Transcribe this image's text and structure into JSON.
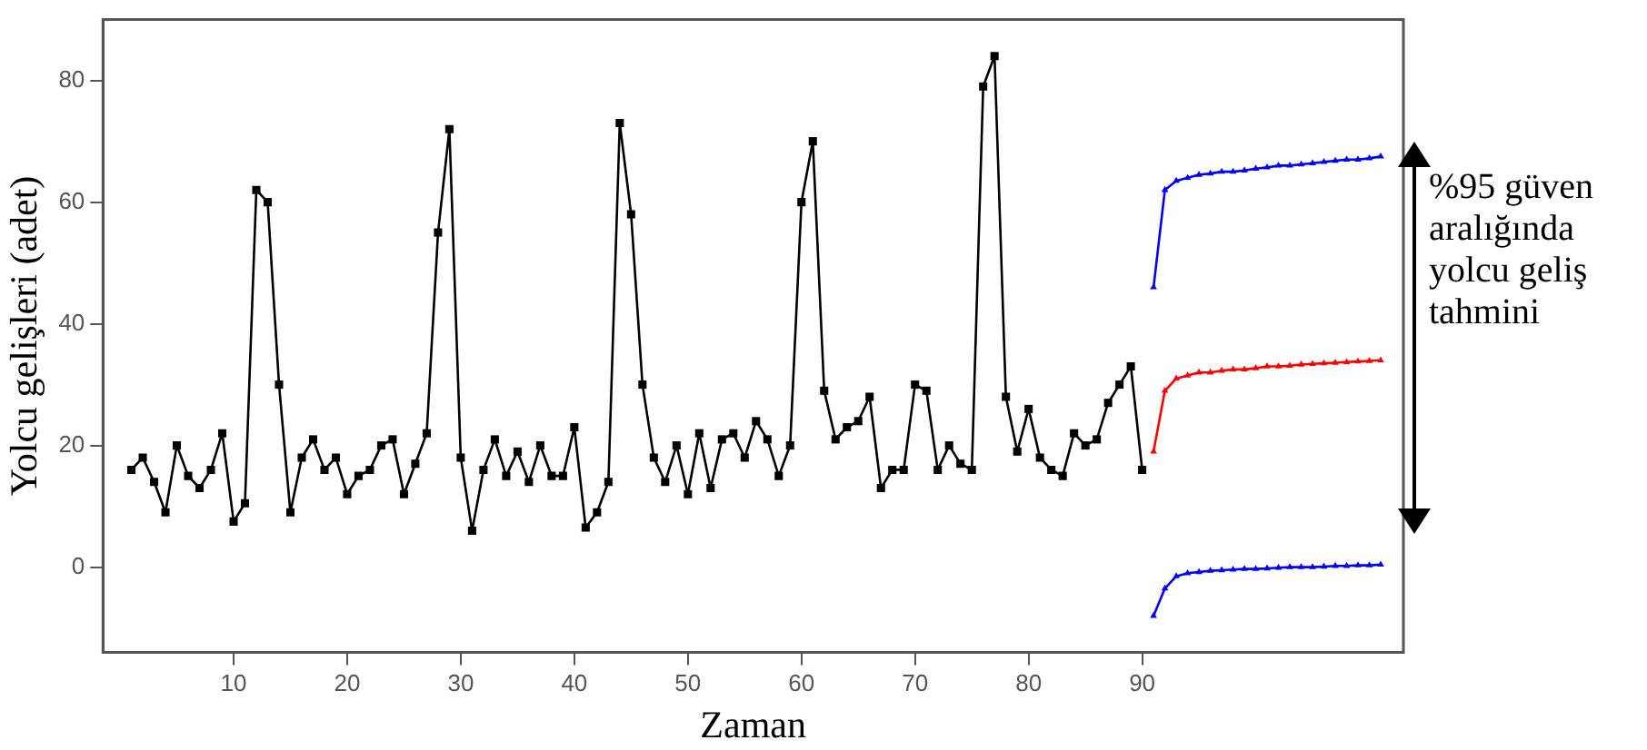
{
  "chart_data": {
    "type": "line",
    "xlabel": "Zaman",
    "ylabel": "Yolcu gelişleri (adet)",
    "xlim": [
      -1.5,
      113
    ],
    "ylim": [
      -14,
      90
    ],
    "xticks": [
      10,
      20,
      30,
      40,
      50,
      60,
      70,
      80,
      90
    ],
    "yticks": [
      0,
      20,
      40,
      60,
      80
    ],
    "grid": false,
    "legend": false,
    "annotations": [
      "%95 güven aralığında yolcu geliş tahmini"
    ],
    "series": [
      {
        "color": "#000000",
        "marker": "square",
        "x": [
          1,
          2,
          3,
          4,
          5,
          6,
          7,
          8,
          9,
          10,
          11,
          12,
          13,
          14,
          15,
          16,
          17,
          18,
          19,
          20,
          21,
          22,
          23,
          24,
          25,
          26,
          27,
          28,
          29,
          30,
          31,
          32,
          33,
          34,
          35,
          36,
          37,
          38,
          39,
          40,
          41,
          42,
          43,
          44,
          45,
          46,
          47,
          48,
          49,
          50,
          51,
          52,
          53,
          54,
          55,
          56,
          57,
          58,
          59,
          60,
          61,
          62,
          63,
          64,
          65,
          66,
          67,
          68,
          69,
          70,
          71,
          72,
          73,
          74,
          75,
          76,
          77,
          78,
          79,
          80,
          81,
          82,
          83,
          84,
          85,
          86,
          87,
          88,
          89,
          90
        ],
        "values": [
          16,
          18,
          14,
          9,
          20,
          15,
          13,
          16,
          22,
          7.5,
          10.5,
          62,
          60,
          30,
          9,
          18,
          21,
          16,
          18,
          12,
          15,
          16,
          20,
          21,
          12,
          17,
          22,
          55,
          72,
          18,
          6,
          16,
          21,
          15,
          19,
          14,
          20,
          15,
          15,
          23,
          6.5,
          9,
          14,
          73,
          58,
          30,
          18,
          14,
          20,
          12,
          22,
          13,
          21,
          22,
          18,
          24,
          21,
          15,
          20,
          60,
          70,
          29,
          21,
          23,
          24,
          28,
          13,
          16,
          16,
          30,
          29,
          16,
          20,
          17,
          16,
          79,
          84,
          28,
          19,
          26,
          18,
          16,
          15,
          22,
          20,
          21,
          27,
          30,
          33,
          16
        ]
      },
      {
        "color": "#0000ff",
        "marker": "triangle",
        "x": [
          91,
          92,
          93,
          94,
          95,
          96,
          97,
          98,
          99,
          100,
          101,
          102,
          103,
          104,
          105,
          106,
          107,
          108,
          109,
          110,
          111
        ],
        "values": [
          46,
          62,
          63.5,
          64,
          64.5,
          64.7,
          65,
          65,
          65.2,
          65.5,
          65.7,
          66,
          66,
          66.2,
          66.4,
          66.6,
          66.8,
          67,
          67,
          67.2,
          67.5
        ]
      },
      {
        "color": "#ff0000",
        "marker": "triangle",
        "x": [
          91,
          92,
          93,
          94,
          95,
          96,
          97,
          98,
          99,
          100,
          101,
          102,
          103,
          104,
          105,
          106,
          107,
          108,
          109,
          110,
          111
        ],
        "values": [
          19,
          29,
          31,
          31.5,
          32,
          32,
          32.3,
          32.5,
          32.5,
          32.7,
          33,
          33,
          33.1,
          33.3,
          33.4,
          33.5,
          33.6,
          33.7,
          33.8,
          33.9,
          34
        ]
      },
      {
        "color": "#0000ff",
        "marker": "triangle",
        "x": [
          91,
          92,
          93,
          94,
          95,
          96,
          97,
          98,
          99,
          100,
          101,
          102,
          103,
          104,
          105,
          106,
          107,
          108,
          109,
          110,
          111
        ],
        "values": [
          -8,
          -3.5,
          -1.5,
          -1,
          -0.8,
          -0.6,
          -0.5,
          -0.4,
          -0.3,
          -0.3,
          -0.2,
          -0.1,
          0,
          0,
          0,
          0.1,
          0.2,
          0.2,
          0.3,
          0.3,
          0.4
        ]
      }
    ]
  }
}
